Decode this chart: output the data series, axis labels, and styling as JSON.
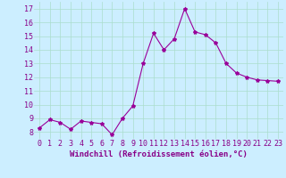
{
  "x": [
    0,
    1,
    2,
    3,
    4,
    5,
    6,
    7,
    8,
    9,
    10,
    11,
    12,
    13,
    14,
    15,
    16,
    17,
    18,
    19,
    20,
    21,
    22,
    23
  ],
  "y": [
    8.3,
    8.9,
    8.7,
    8.2,
    8.8,
    8.7,
    8.6,
    7.8,
    9.0,
    9.9,
    13.0,
    15.2,
    14.0,
    14.8,
    17.0,
    15.3,
    15.1,
    14.5,
    13.0,
    12.3,
    12.0,
    11.8,
    11.75,
    11.7
  ],
  "line_color": "#990099",
  "marker": "*",
  "marker_size": 3,
  "bg_color": "#cceeff",
  "grid_color": "#aaddcc",
  "xlabel": "Windchill (Refroidissement éolien,°C)",
  "ylim": [
    7.5,
    17.5
  ],
  "xlim": [
    -0.5,
    23.5
  ],
  "yticks": [
    8,
    9,
    10,
    11,
    12,
    13,
    14,
    15,
    16,
    17
  ],
  "xticks": [
    0,
    1,
    2,
    3,
    4,
    5,
    6,
    7,
    8,
    9,
    10,
    11,
    12,
    13,
    14,
    15,
    16,
    17,
    18,
    19,
    20,
    21,
    22,
    23
  ],
  "xlabel_fontsize": 6.5,
  "tick_fontsize": 6,
  "tick_color": "#880088",
  "xlabel_color": "#880088",
  "grid_linewidth": 0.5
}
